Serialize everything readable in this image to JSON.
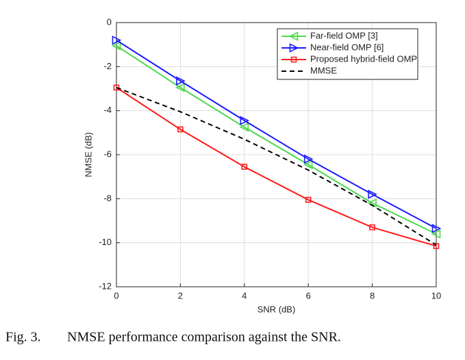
{
  "chart_data": {
    "type": "line",
    "x": [
      0,
      2,
      4,
      6,
      8,
      10
    ],
    "xlabel": "SNR (dB)",
    "ylabel": "NMSE (dB)",
    "xlim": [
      0,
      10
    ],
    "xticks": [
      0,
      2,
      4,
      6,
      8,
      10
    ],
    "ylim": [
      -12,
      0
    ],
    "yticks": [
      0,
      -2,
      -4,
      -6,
      -8,
      -10,
      -12
    ],
    "grid": true,
    "legend": "upper right",
    "series": [
      {
        "name": "Far-field OMP [3]",
        "color": "#4cd94c",
        "marker": "triangle-left",
        "dash": false,
        "values": [
          -1.05,
          -2.95,
          -4.75,
          -6.45,
          -8.2,
          -9.6
        ]
      },
      {
        "name": "Near-field OMP [6]",
        "color": "#1a1aff",
        "marker": "triangle-right",
        "dash": false,
        "values": [
          -0.8,
          -2.65,
          -4.45,
          -6.2,
          -7.8,
          -9.35
        ]
      },
      {
        "name": "Proposed hybrid-field OMP",
        "color": "#ff1a1a",
        "marker": "square",
        "dash": false,
        "values": [
          -2.95,
          -4.85,
          -6.55,
          -8.05,
          -9.3,
          -10.15
        ]
      },
      {
        "name": "MMSE",
        "color": "#000000",
        "marker": "none",
        "dash": true,
        "values": [
          -2.95,
          -4.05,
          -5.3,
          -6.7,
          -8.3,
          -10.1
        ]
      }
    ]
  },
  "caption": {
    "label": "Fig. 3.",
    "text": "NMSE performance comparison against the SNR."
  }
}
